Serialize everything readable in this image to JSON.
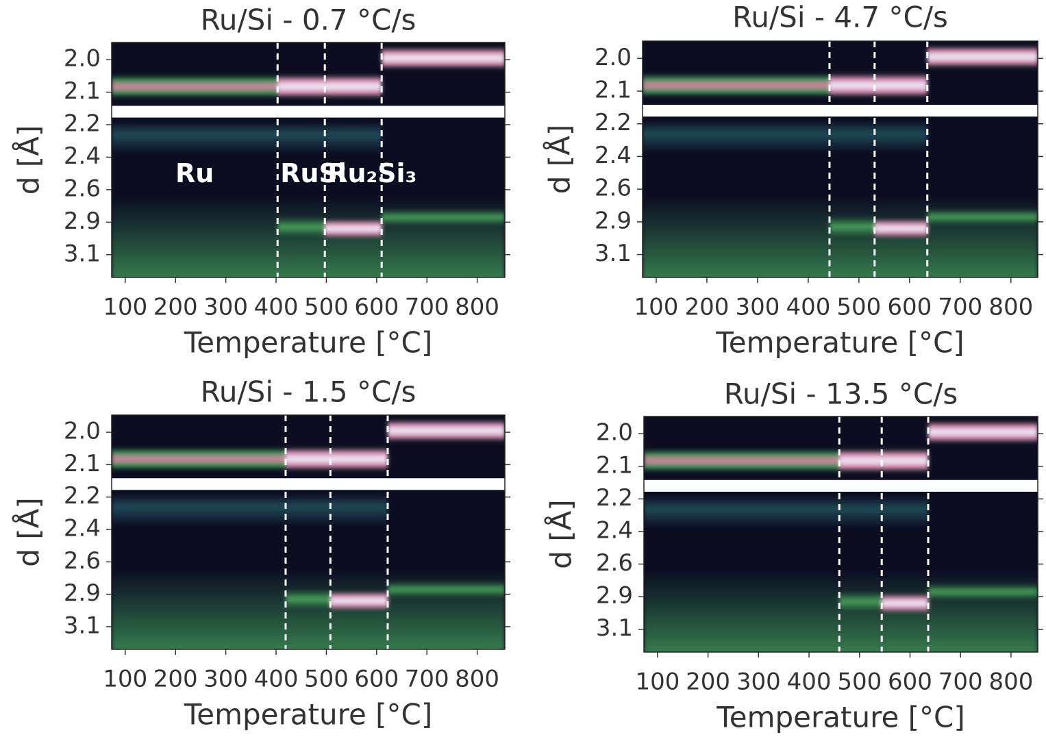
{
  "chart_data": [
    {
      "type": "heatmap",
      "title": "Ru/Si - 0.7 °C/s",
      "xlabel": "Temperature [°C]",
      "ylabel": "d [Å]",
      "xlim": [
        73,
        855
      ],
      "xticks": [
        100,
        200,
        300,
        400,
        500,
        600,
        700,
        800
      ],
      "yticks": [
        {
          "value": 2,
          "label": "2.0"
        },
        2.1,
        2.2,
        2.4,
        2.6,
        2.9,
        3.1
      ],
      "phase_boundaries": [
        403,
        497,
        610
      ],
      "annotations": [
        "Ru",
        "RuSi",
        "Ru₂Si₃"
      ]
    },
    {
      "type": "heatmap",
      "title": "Ru/Si - 4.7 °C/s",
      "xlabel": "Temperature [°C]",
      "ylabel": "d [Å]",
      "xlim": [
        73,
        853
      ],
      "xticks": [
        100,
        200,
        300,
        400,
        500,
        600,
        700,
        800
      ],
      "yticks": [
        {
          "value": 2,
          "label": "2.0"
        },
        2.1,
        2.2,
        2.4,
        2.6,
        2.9,
        3.1
      ],
      "phase_boundaries": [
        442,
        531,
        635
      ]
    },
    {
      "type": "heatmap",
      "title": "Ru/Si - 1.5 °C/s",
      "xlabel": "Temperature [°C]",
      "ylabel": "d [Å]",
      "xlim": [
        73,
        855
      ],
      "xticks": [
        100,
        200,
        300,
        400,
        500,
        600,
        700,
        800
      ],
      "yticks": [
        {
          "value": 2,
          "label": "2.0"
        },
        2.1,
        2.2,
        2.4,
        2.6,
        2.9,
        3.1
      ],
      "phase_boundaries": [
        419,
        508,
        622
      ]
    },
    {
      "type": "heatmap",
      "title": "Ru/Si - 13.5 °C/s",
      "xlabel": "Temperature [°C]",
      "ylabel": "d [Å]",
      "xlim": [
        73,
        853
      ],
      "xticks": [
        100,
        200,
        300,
        400,
        500,
        600,
        700,
        800
      ],
      "yticks": [
        {
          "value": 2,
          "label": "2.0"
        },
        2.1,
        2.2,
        2.4,
        2.6,
        2.9,
        3.1
      ],
      "phase_boundaries": [
        460,
        544,
        636
      ]
    }
  ]
}
